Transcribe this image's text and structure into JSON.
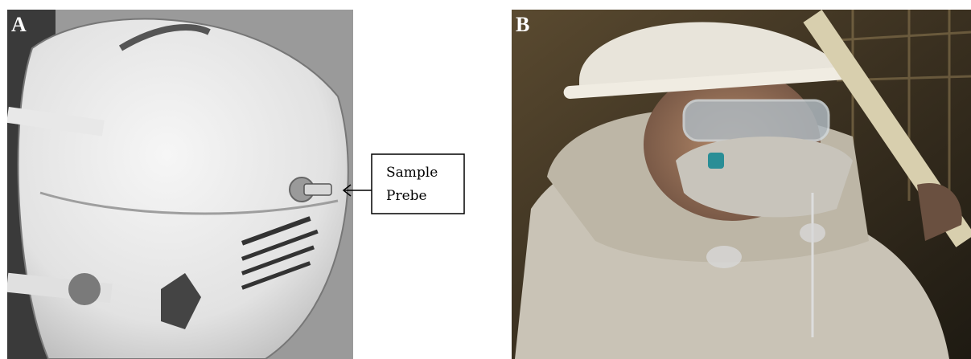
{
  "panels": [
    {
      "label": "A"
    },
    {
      "label": "B"
    }
  ],
  "callout": {
    "lines": [
      "Sample",
      "Prebe"
    ]
  }
}
